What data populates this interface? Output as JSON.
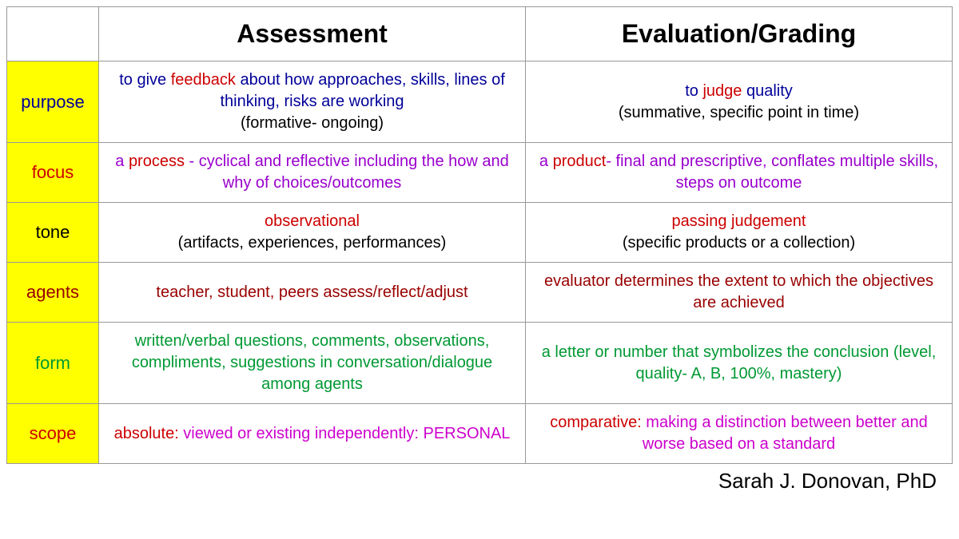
{
  "colors": {
    "yellow_bg": "#ffff00",
    "navy": "#000099",
    "red": "#cc0000",
    "purple": "#9900cc",
    "maroon": "#990000",
    "black": "#000000",
    "green": "#009933",
    "magenta": "#cc00cc"
  },
  "headers": {
    "col1": "Assessment",
    "col2": "Evaluation/Grading"
  },
  "rows": {
    "purpose": {
      "label": "purpose",
      "label_color": "navy",
      "assessment": [
        {
          "t": "to give ",
          "c": "navy"
        },
        {
          "t": "feedback",
          "c": "red"
        },
        {
          "t": " about how approaches, skills, lines of thinking, risks are working",
          "c": "navy"
        },
        {
          "t": "\n",
          "c": "navy"
        },
        {
          "t": "(formative- ongoing)",
          "c": "black"
        }
      ],
      "evaluation": [
        {
          "t": "to ",
          "c": "navy"
        },
        {
          "t": "judge",
          "c": "red"
        },
        {
          "t": " quality",
          "c": "navy"
        },
        {
          "t": "\n",
          "c": "navy"
        },
        {
          "t": "(summative, specific point in time)",
          "c": "black"
        }
      ]
    },
    "focus": {
      "label": "focus",
      "label_color": "red",
      "assessment": [
        {
          "t": "a ",
          "c": "purple"
        },
        {
          "t": "process",
          "c": "red"
        },
        {
          "t": " - cyclical and reflective including the how and why of choices/outcomes",
          "c": "purple"
        }
      ],
      "evaluation": [
        {
          "t": "a ",
          "c": "purple"
        },
        {
          "t": "product",
          "c": "red"
        },
        {
          "t": "- final and prescriptive, conflates multiple skills, steps on outcome",
          "c": "purple"
        }
      ]
    },
    "tone": {
      "label": "tone",
      "label_color": "black",
      "assessment": [
        {
          "t": "observational",
          "c": "red"
        },
        {
          "t": "\n",
          "c": "black"
        },
        {
          "t": "(artifacts, experiences, performances)",
          "c": "black"
        }
      ],
      "evaluation": [
        {
          "t": "passing judgement",
          "c": "red"
        },
        {
          "t": "\n",
          "c": "black"
        },
        {
          "t": "(specific products or a collection)",
          "c": "black"
        }
      ]
    },
    "agents": {
      "label": "agents",
      "label_color": "maroon",
      "assessment": [
        {
          "t": "teacher, student, peers assess/reflect/adjust",
          "c": "maroon"
        }
      ],
      "evaluation": [
        {
          "t": "evaluator determines the extent to which the objectives are achieved",
          "c": "maroon"
        }
      ]
    },
    "form": {
      "label": "form",
      "label_color": "green",
      "assessment": [
        {
          "t": "written/verbal questions, comments, observations, compliments, suggestions in conversation/dialogue among agents",
          "c": "green"
        }
      ],
      "evaluation": [
        {
          "t": "a letter or number that symbolizes the conclusion (level, quality- A, B, 100%, mastery)",
          "c": "green"
        }
      ]
    },
    "scope": {
      "label": "scope",
      "label_color": "red",
      "assessment": [
        {
          "t": "absolute:",
          "c": "red"
        },
        {
          "t": " viewed or existing independently: PERSONAL",
          "c": "magenta"
        }
      ],
      "evaluation": [
        {
          "t": "comparative:",
          "c": "red"
        },
        {
          "t": " making a distinction between better and worse based on a standard",
          "c": "magenta"
        }
      ]
    }
  },
  "row_order": [
    "purpose",
    "focus",
    "tone",
    "agents",
    "form",
    "scope"
  ],
  "attribution": "Sarah J. Donovan, PhD"
}
